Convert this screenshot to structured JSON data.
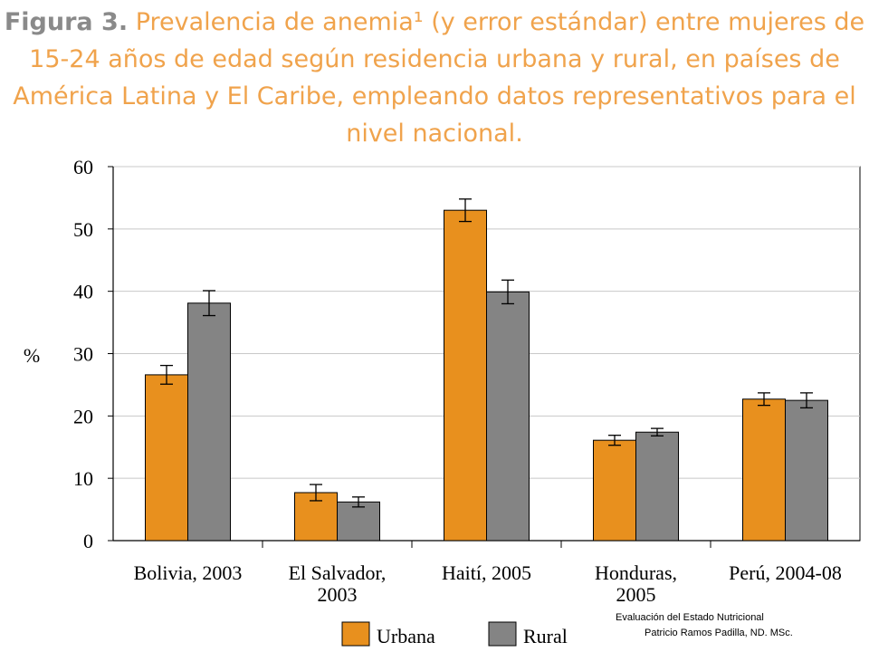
{
  "title": {
    "lead": "Figura 3.",
    "text": "Prevalencia de anemia¹ (y error estándar) entre mujeres de 15-24 años de edad según residencia urbana y rural, en países de América Latina y El Caribe, empleando datos representativos para el nivel nacional."
  },
  "footer": {
    "line1": "Evaluación del Estado Nutricional",
    "line2": "Patricio Ramos Padilla, ND. MSc."
  },
  "colors": {
    "urbana": "#e8901e",
    "rural": "#848484",
    "title": "#f0a34c"
  },
  "chart_data": {
    "type": "bar",
    "title": "Figura 3. Prevalencia de anemia¹ (y error estándar) entre mujeres de 15-24 años de edad según residencia urbana y rural, en países de América Latina y El Caribe, empleando datos representativos para el nivel nacional.",
    "xlabel": "",
    "ylabel": "%",
    "ylim": [
      0,
      60
    ],
    "yticks": [
      0,
      10,
      20,
      30,
      40,
      50,
      60
    ],
    "grid": true,
    "legend": "bottom",
    "categories": [
      [
        "Bolivia, 2003"
      ],
      [
        "El Salvador,",
        "2003"
      ],
      [
        "Haití, 2005"
      ],
      [
        "Honduras,",
        "2005"
      ],
      [
        "Perú, 2004-08"
      ]
    ],
    "series": [
      {
        "name": "Urbana",
        "values": [
          26.6,
          7.7,
          53.0,
          16.1,
          22.7
        ],
        "errors": [
          1.5,
          1.3,
          1.8,
          0.8,
          1.0
        ]
      },
      {
        "name": "Rural",
        "values": [
          38.1,
          6.2,
          39.9,
          17.4,
          22.5
        ],
        "errors": [
          2.0,
          0.8,
          1.9,
          0.6,
          1.2
        ]
      }
    ]
  }
}
